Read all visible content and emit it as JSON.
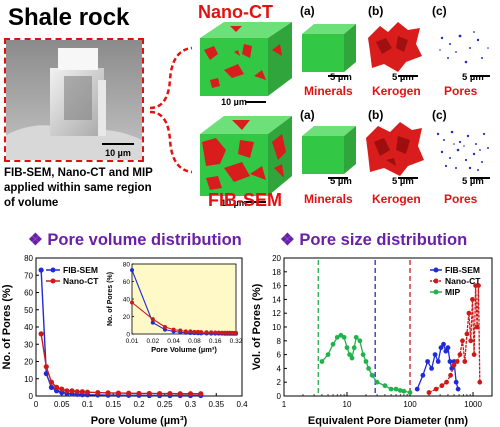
{
  "header": {
    "title": "Shale rock",
    "sem_scale": "10 µm",
    "caption": "FIB-SEM, Nano-CT and MIP applied within same region of volume"
  },
  "nanoct_row": {
    "label": "Nano-CT",
    "cube_scale": "10 µm",
    "panels": [
      {
        "tag": "(a)",
        "label": "Minerals",
        "scale": "5 µm"
      },
      {
        "tag": "(b)",
        "label": "Kerogen",
        "scale": "5 µm"
      },
      {
        "tag": "(c)",
        "label": "Pores",
        "scale": "5 µm"
      }
    ]
  },
  "fibsem_row": {
    "label": "FIB-SEM",
    "cube_scale": "10 µm",
    "panels": [
      {
        "tag": "(a)",
        "label": "Minerals",
        "scale": "5 µm"
      },
      {
        "tag": "(b)",
        "label": "Kerogen",
        "scale": "5 µm"
      },
      {
        "tag": "(c)",
        "label": "Pores",
        "scale": "5 µm"
      }
    ]
  },
  "sections": {
    "left_title": "Pore volume distribution",
    "right_title": "Pore size distribution"
  },
  "colors": {
    "fibsem": "#1f2bd6",
    "nanoct": "#cc1a1a",
    "mip": "#22b24c",
    "accent_red": "#e31212",
    "title_purple": "#6a1fa8"
  },
  "chart_data": [
    {
      "type": "line",
      "xlabel": "Pore Volume (µm³)",
      "ylabel": "No. of Pores (%)",
      "xlim": [
        0,
        0.4
      ],
      "ylim": [
        0,
        80
      ],
      "xticks": [
        "0",
        "0.05",
        "0.1",
        "0.15",
        "0.2",
        "0.25",
        "0.3",
        "0.35",
        "0.4"
      ],
      "yticks": [
        "0",
        "10",
        "20",
        "30",
        "40",
        "50",
        "60",
        "70",
        "80"
      ],
      "legend_position": "top-left",
      "series": [
        {
          "name": "FIB-SEM",
          "color": "#1f2bd6",
          "x": [
            0.01,
            0.02,
            0.03,
            0.04,
            0.05,
            0.06,
            0.07,
            0.08,
            0.09,
            0.1,
            0.12,
            0.14,
            0.16,
            0.18,
            0.2,
            0.22,
            0.24,
            0.26,
            0.28,
            0.3,
            0.32
          ],
          "y": [
            73,
            13,
            5,
            3,
            2,
            1.5,
            1.2,
            1,
            0.8,
            0.7,
            0.6,
            0.5,
            0.5,
            0.4,
            0.4,
            0.3,
            0.3,
            0.3,
            0.3,
            0.3,
            0.3
          ]
        },
        {
          "name": "Nano-CT",
          "color": "#cc1a1a",
          "x": [
            0.01,
            0.02,
            0.03,
            0.04,
            0.05,
            0.06,
            0.07,
            0.08,
            0.09,
            0.1,
            0.12,
            0.14,
            0.16,
            0.18,
            0.2,
            0.22,
            0.24,
            0.26,
            0.28,
            0.3,
            0.32
          ],
          "y": [
            36,
            17,
            8,
            5,
            4,
            3,
            3,
            2.5,
            2.5,
            2.2,
            2,
            1.8,
            1.7,
            1.6,
            1.5,
            1.5,
            1.4,
            1.4,
            1.3,
            1.3,
            1.3
          ]
        }
      ],
      "inset": {
        "xlabel": "Pore Volume (µm³)",
        "ylabel": "No. of Pores (%)",
        "xlim": [
          0.01,
          0.32
        ],
        "ylim": [
          0,
          80
        ],
        "xticks": [
          "0.01",
          "0.02",
          "0.04",
          "0.08",
          "0.16",
          "0.32"
        ],
        "yticks": [
          "0",
          "20",
          "40",
          "60",
          "80"
        ]
      }
    },
    {
      "type": "line",
      "xlabel": "Equivalent Pore Diameter (nm)",
      "ylabel": "Vol. of Pores (%)",
      "xscale": "log",
      "xlim": [
        1,
        2000
      ],
      "ylim": [
        0,
        20
      ],
      "xticks": [
        "1",
        "10",
        "100",
        "1000"
      ],
      "yticks": [
        "0",
        "2",
        "4",
        "6",
        "8",
        "10",
        "12",
        "14",
        "16",
        "18",
        "20"
      ],
      "legend_position": "top-right",
      "vlines": [
        {
          "x": 3.5,
          "color": "#22b24c"
        },
        {
          "x": 28,
          "color": "#1f2bd6"
        },
        {
          "x": 100,
          "color": "#cc1a1a"
        }
      ],
      "series": [
        {
          "name": "FIB-SEM",
          "color": "#1f2bd6",
          "x": [
            130,
            160,
            190,
            220,
            250,
            280,
            310,
            340,
            370,
            400,
            430,
            460,
            500,
            540,
            580
          ],
          "y": [
            1,
            3,
            5,
            4,
            6,
            5,
            7,
            7.5,
            6.5,
            7,
            5,
            4,
            5,
            2,
            1
          ]
        },
        {
          "name": "Nano-CT",
          "color": "#cc1a1a",
          "x": [
            200,
            260,
            320,
            380,
            440,
            500,
            560,
            620,
            680,
            740,
            800,
            860,
            920,
            980,
            1040,
            1100,
            1160,
            1220,
            1280
          ],
          "y": [
            0.5,
            1,
            1.5,
            2,
            3,
            4.5,
            5,
            6,
            8,
            5,
            9,
            12,
            8,
            14,
            6,
            16,
            10,
            16,
            2
          ]
        },
        {
          "name": "MIP",
          "color": "#22b24c",
          "x": [
            4,
            5,
            6,
            7,
            8,
            9,
            10,
            11,
            12,
            13,
            14,
            16,
            18,
            20,
            22,
            25,
            30,
            40,
            50,
            60,
            70,
            80,
            100
          ],
          "y": [
            5,
            6,
            7.5,
            8.5,
            8.8,
            8.5,
            7,
            6,
            5.5,
            7,
            8.5,
            8,
            6,
            5,
            4,
            3,
            2,
            1.5,
            1,
            1,
            0.8,
            0.7,
            0.5
          ]
        }
      ]
    }
  ]
}
